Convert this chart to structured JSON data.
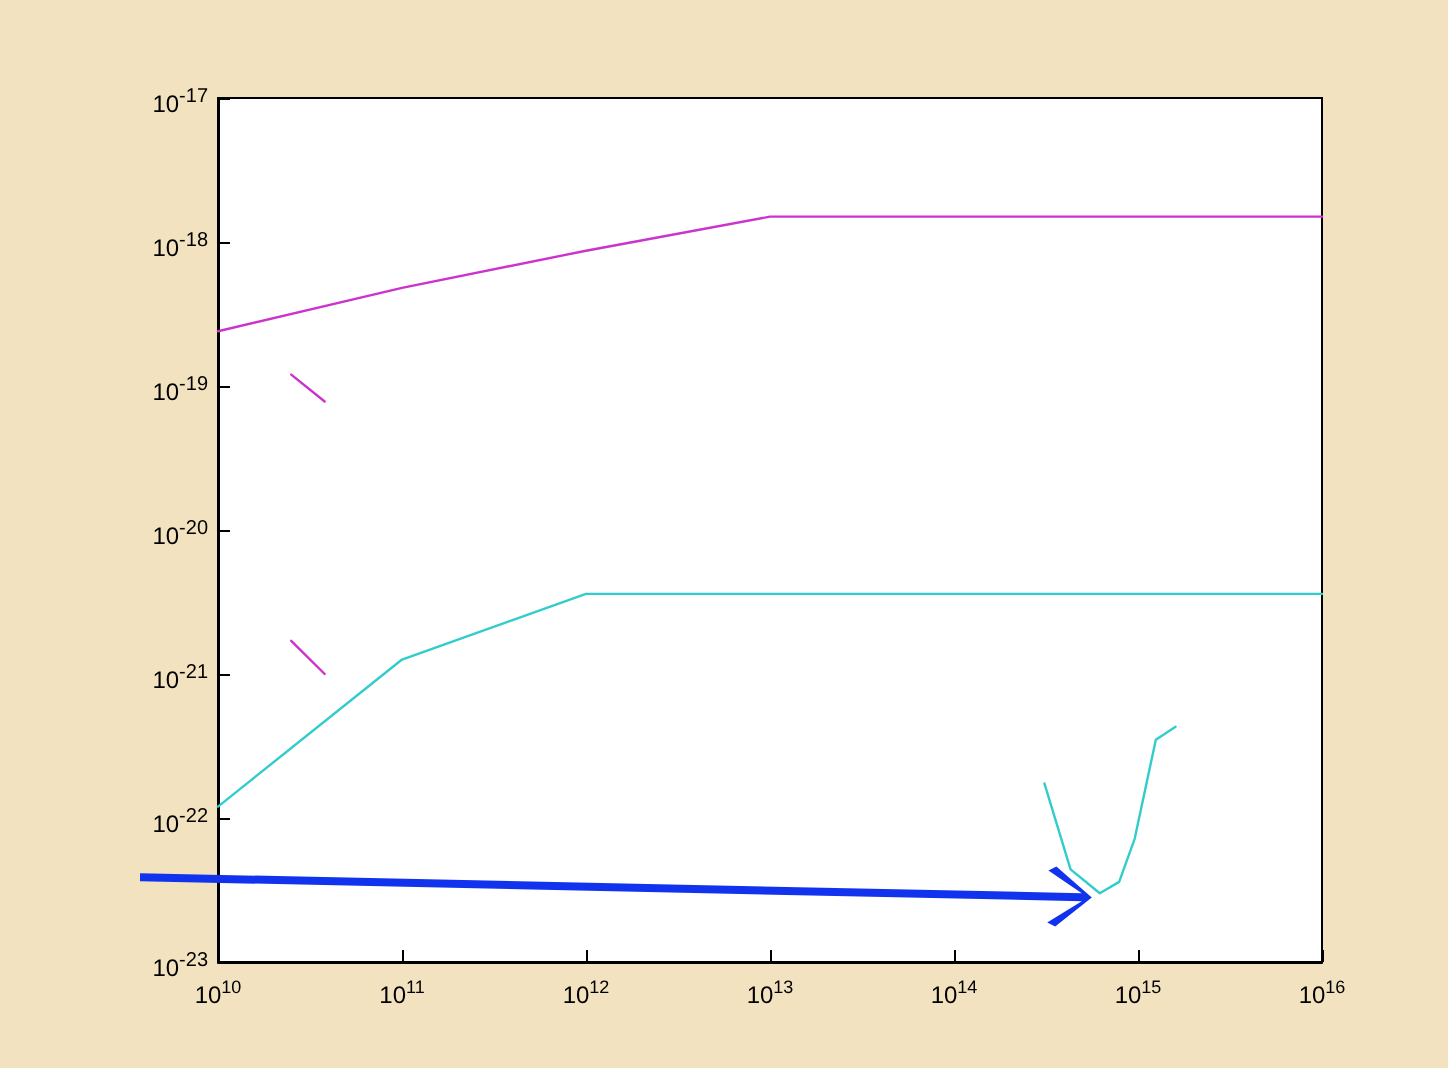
{
  "chart_data": {
    "type": "line",
    "log": "xy",
    "grid": false,
    "marker": "none",
    "xlim": [
      10000000000.0,
      1e+16
    ],
    "ylim": [
      1e-23,
      1e-17
    ],
    "xticks": [
      {
        "value": 10000000000.0,
        "label": "10$^{10}$"
      },
      {
        "value": 100000000000.0,
        "label": "10$^{11}$"
      },
      {
        "value": 1000000000000.0,
        "label": "10$^{12}$"
      },
      {
        "value": 10000000000000.0,
        "label": "10$^{13}$"
      },
      {
        "value": 100000000000000.0,
        "label": "10$^{14}$"
      },
      {
        "value": 1000000000000000.0,
        "label": "10$^{15}$"
      },
      {
        "value": 1e+16,
        "label": "10$^{16}$"
      }
    ],
    "yticks": [
      {
        "value": 1e-23,
        "label": "10$^{-23}$"
      },
      {
        "value": 1e-22,
        "label": "10$^{-22}$"
      },
      {
        "value": 1e-21,
        "label": "10$^{-21}$"
      },
      {
        "value": 1e-20,
        "label": "10$^{-20}$"
      },
      {
        "value": 1e-19,
        "label": "10$^{-19}$"
      },
      {
        "value": 1e-18,
        "label": "10$^{-18}$"
      },
      {
        "value": 1e-17,
        "label": "10$^{-17}$"
      }
    ],
    "series": [
      {
        "color": "#cc33cc",
        "x": [
          10000000000.0,
          100000000000.0,
          1000000000000.0,
          10000000000000.0,
          1e+16
        ],
        "values": [
          2.4e-19,
          4.8e-19,
          8.7e-19,
          1.5e-18,
          1.5e-18
        ]
      },
      {
        "color": "#cc33cc",
        "x": [
          25000000000.0,
          38000000000.0
        ],
        "values": [
          1.2e-19,
          7.8e-20
        ]
      },
      {
        "color": "#cc33cc",
        "x": [
          25000000000.0,
          38000000000.0
        ],
        "values": [
          1.7e-21,
          1e-21
        ]
      },
      {
        "color": "#33cccc",
        "x": [
          10000000000.0,
          100000000000.0,
          1000000000000.0,
          1e+16
        ],
        "values": [
          1.2e-22,
          1.26e-21,
          3.6e-21,
          3.6e-21
        ]
      },
      {
        "color": "#33cccc",
        "x": [
          310000000000000.0,
          430000000000000.0,
          620000000000000.0,
          790000000000000.0,
          960000000000000.0,
          1250000000000000.0,
          1600000000000000.0
        ],
        "values": [
          1.74e-22,
          4.4e-23,
          3e-23,
          3.6e-23,
          7.2e-23,
          3.5e-22,
          4.3e-22
        ]
      }
    ]
  }
}
